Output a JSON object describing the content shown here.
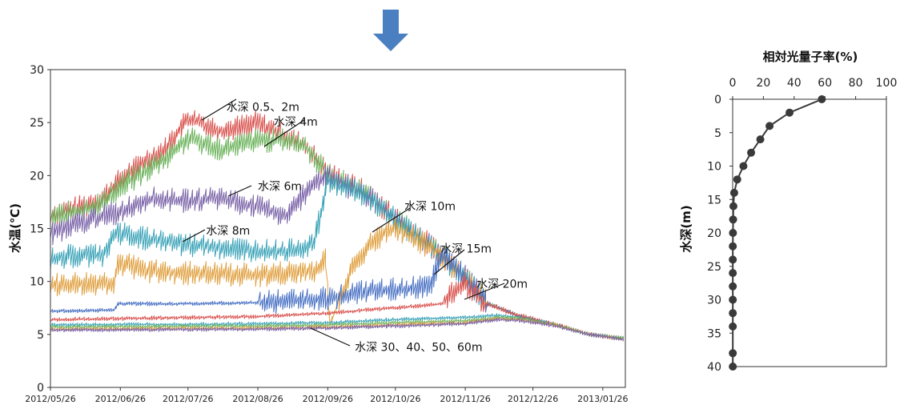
{
  "colors": {
    "arrow": "#4a7fc1",
    "frame": "#333333",
    "profile": "#3a3a3a"
  },
  "chart_data": [
    {
      "type": "line",
      "ylabel": "水温(℃)",
      "ylim": [
        0,
        30
      ],
      "yticks": [
        "0",
        "5",
        "10",
        "15",
        "20",
        "25",
        "30"
      ],
      "xlim": [
        "2012/05/26",
        "2013/02/05"
      ],
      "xticks": [
        "2012/05/26",
        "2012/06/26",
        "2012/07/26",
        "2012/08/26",
        "2012/09/26",
        "2012/10/26",
        "2012/11/26",
        "2012/12/26",
        "2013/01/26"
      ],
      "grid": false,
      "annotations": [
        {
          "text": "水深 0.5、2m",
          "x": "2012/08/12",
          "y": 26.5
        },
        {
          "text": "水深 4m",
          "x": "2012/09/02",
          "y": 25.1
        },
        {
          "text": "水深 6m",
          "x": "2012/08/26",
          "y": 19.0
        },
        {
          "text": "水深 8m",
          "x": "2012/08/03",
          "y": 14.8
        },
        {
          "text": "水深 10m",
          "x": "2012/10/30",
          "y": 17.1
        },
        {
          "text": "水深 15m",
          "x": "2012/11/15",
          "y": 13.1
        },
        {
          "text": "水深 20m",
          "x": "2012/12/01",
          "y": 9.8
        },
        {
          "text": "水深 30、40、50、60m",
          "x": "2012/10/08",
          "y": 3.8
        }
      ],
      "series": [
        {
          "color": "#d9534f",
          "points": [
            [
              "2012/05/26",
              16.3
            ],
            [
              "2012/06/08",
              17.0
            ],
            [
              "2012/06/18",
              17.8
            ],
            [
              "2012/06/26",
              19.6
            ],
            [
              "2012/07/08",
              21.5
            ],
            [
              "2012/07/16",
              22.5
            ],
            [
              "2012/07/26",
              25.4
            ],
            [
              "2012/08/10",
              24.2
            ],
            [
              "2012/08/26",
              25.0
            ],
            [
              "2012/09/08",
              23.6
            ],
            [
              "2012/09/16",
              22.8
            ],
            [
              "2012/09/26",
              20.2
            ],
            [
              "2012/10/12",
              18.5
            ],
            [
              "2012/10/26",
              16.0
            ],
            [
              "2012/11/10",
              13.5
            ],
            [
              "2012/11/26",
              10.5
            ],
            [
              "2012/12/06",
              8.0
            ],
            [
              "2012/12/20",
              6.8
            ],
            [
              "2013/01/05",
              6.0
            ],
            [
              "2013/01/20",
              5.0
            ],
            [
              "2013/02/05",
              4.6
            ]
          ]
        },
        {
          "color": "#6cb35c",
          "points": [
            [
              "2012/05/26",
              16.1
            ],
            [
              "2012/06/08",
              16.6
            ],
            [
              "2012/06/18",
              17.4
            ],
            [
              "2012/06/26",
              19.0
            ],
            [
              "2012/07/08",
              20.5
            ],
            [
              "2012/07/16",
              21.6
            ],
            [
              "2012/07/26",
              23.5
            ],
            [
              "2012/08/10",
              22.5
            ],
            [
              "2012/08/26",
              23.3
            ],
            [
              "2012/09/08",
              23.3
            ],
            [
              "2012/09/16",
              22.8
            ],
            [
              "2012/09/26",
              20.1
            ],
            [
              "2012/10/12",
              18.4
            ],
            [
              "2012/10/26",
              15.9
            ],
            [
              "2012/11/10",
              13.4
            ],
            [
              "2012/11/26",
              10.4
            ],
            [
              "2012/12/06",
              7.9
            ],
            [
              "2012/12/20",
              6.7
            ],
            [
              "2013/01/05",
              5.9
            ],
            [
              "2013/01/20",
              5.0
            ],
            [
              "2013/02/05",
              4.6
            ]
          ]
        },
        {
          "color": "#7a63a8",
          "points": [
            [
              "2012/05/26",
              14.5
            ],
            [
              "2012/06/08",
              15.5
            ],
            [
              "2012/06/18",
              16.2
            ],
            [
              "2012/06/26",
              16.6
            ],
            [
              "2012/07/08",
              17.8
            ],
            [
              "2012/07/26",
              17.6
            ],
            [
              "2012/08/10",
              17.9
            ],
            [
              "2012/08/26",
              17.0
            ],
            [
              "2012/09/08",
              16.2
            ],
            [
              "2012/09/20",
              19.5
            ],
            [
              "2012/09/26",
              19.8
            ],
            [
              "2012/10/12",
              18.3
            ],
            [
              "2012/10/26",
              15.9
            ],
            [
              "2012/11/10",
              13.4
            ],
            [
              "2012/11/26",
              10.4
            ],
            [
              "2012/12/06",
              7.9
            ],
            [
              "2012/12/20",
              6.7
            ],
            [
              "2013/01/05",
              5.9
            ],
            [
              "2013/01/20",
              5.0
            ],
            [
              "2013/02/05",
              4.6
            ]
          ]
        },
        {
          "color": "#3ba3b8",
          "points": [
            [
              "2012/05/26",
              12.2
            ],
            [
              "2012/06/08",
              12.5
            ],
            [
              "2012/06/18",
              12.5
            ],
            [
              "2012/06/24",
              14.6
            ],
            [
              "2012/07/08",
              14.0
            ],
            [
              "2012/07/26",
              13.5
            ],
            [
              "2012/08/10",
              13.2
            ],
            [
              "2012/08/26",
              12.9
            ],
            [
              "2012/09/08",
              12.8
            ],
            [
              "2012/09/20",
              13.6
            ],
            [
              "2012/09/26",
              19.4
            ],
            [
              "2012/10/12",
              18.2
            ],
            [
              "2012/10/26",
              15.8
            ],
            [
              "2012/11/10",
              13.4
            ],
            [
              "2012/11/26",
              10.4
            ],
            [
              "2012/12/06",
              7.9
            ],
            [
              "2012/12/20",
              6.7
            ],
            [
              "2013/01/05",
              5.9
            ],
            [
              "2013/01/20",
              5.0
            ],
            [
              "2013/02/05",
              4.6
            ]
          ]
        },
        {
          "color": "#e0a040",
          "points": [
            [
              "2012/05/26",
              9.6
            ],
            [
              "2012/06/08",
              9.8
            ],
            [
              "2012/06/23",
              9.9
            ],
            [
              "2012/06/25",
              11.8
            ],
            [
              "2012/07/08",
              11.0
            ],
            [
              "2012/07/26",
              10.8
            ],
            [
              "2012/08/26",
              10.6
            ],
            [
              "2012/09/20",
              11.0
            ],
            [
              "2012/09/25",
              12.0
            ],
            [
              "2012/09/27",
              6.0
            ],
            [
              "2012/10/08",
              12.0
            ],
            [
              "2012/10/20",
              14.5
            ],
            [
              "2012/10/26",
              15.0
            ],
            [
              "2012/11/10",
              13.3
            ],
            [
              "2012/11/26",
              10.4
            ],
            [
              "2012/12/06",
              7.9
            ],
            [
              "2012/12/20",
              6.7
            ],
            [
              "2013/01/05",
              5.9
            ],
            [
              "2013/01/20",
              5.0
            ],
            [
              "2013/02/05",
              4.6
            ]
          ]
        },
        {
          "color": "#4a72c4",
          "points": [
            [
              "2012/05/26",
              7.2
            ],
            [
              "2012/06/23",
              7.3
            ],
            [
              "2012/06/25",
              7.9
            ],
            [
              "2012/07/26",
              7.9
            ],
            [
              "2012/08/26",
              8.0
            ],
            [
              "2012/09/26",
              8.4
            ],
            [
              "2012/09/28",
              8.5
            ],
            [
              "2012/10/12",
              9.0
            ],
            [
              "2012/10/26",
              9.2
            ],
            [
              "2012/11/10",
              9.5
            ],
            [
              "2012/11/16",
              12.5
            ],
            [
              "2012/11/26",
              10.4
            ],
            [
              "2012/12/06",
              7.9
            ],
            [
              "2012/12/20",
              6.7
            ],
            [
              "2013/01/05",
              5.9
            ],
            [
              "2013/01/20",
              5.0
            ],
            [
              "2013/02/05",
              4.6
            ]
          ]
        },
        {
          "color": "#d9534f",
          "points": [
            [
              "2012/05/26",
              6.4
            ],
            [
              "2012/07/26",
              6.6
            ],
            [
              "2012/08/26",
              6.7
            ],
            [
              "2012/09/26",
              7.0
            ],
            [
              "2012/10/12",
              7.3
            ],
            [
              "2012/10/26",
              7.5
            ],
            [
              "2012/11/16",
              7.9
            ],
            [
              "2012/11/22",
              9.2
            ],
            [
              "2012/11/26",
              9.5
            ],
            [
              "2012/12/06",
              7.8
            ],
            [
              "2012/12/20",
              6.7
            ],
            [
              "2013/01/05",
              5.9
            ],
            [
              "2013/01/20",
              5.0
            ],
            [
              "2013/02/05",
              4.6
            ]
          ]
        },
        {
          "color": "#3ba3b8",
          "points": [
            [
              "2012/05/26",
              5.9
            ],
            [
              "2012/08/26",
              6.0
            ],
            [
              "2012/09/26",
              6.1
            ],
            [
              "2012/10/26",
              6.4
            ],
            [
              "2012/11/26",
              6.6
            ],
            [
              "2012/12/10",
              6.8
            ],
            [
              "2012/12/20",
              6.6
            ],
            [
              "2013/01/05",
              5.9
            ],
            [
              "2013/01/20",
              5.0
            ],
            [
              "2013/02/05",
              4.6
            ]
          ]
        },
        {
          "color": "#6cb35c",
          "points": [
            [
              "2012/05/26",
              5.7
            ],
            [
              "2012/08/26",
              5.8
            ],
            [
              "2012/09/26",
              5.9
            ],
            [
              "2012/10/26",
              6.1
            ],
            [
              "2012/11/26",
              6.3
            ],
            [
              "2012/12/10",
              6.6
            ],
            [
              "2012/12/20",
              6.5
            ],
            [
              "2013/01/05",
              5.9
            ],
            [
              "2013/01/20",
              5.0
            ],
            [
              "2013/02/05",
              4.6
            ]
          ]
        },
        {
          "color": "#e0a040",
          "points": [
            [
              "2012/05/26",
              5.5
            ],
            [
              "2012/08/26",
              5.6
            ],
            [
              "2012/09/26",
              5.7
            ],
            [
              "2012/10/26",
              5.9
            ],
            [
              "2012/11/26",
              6.1
            ],
            [
              "2012/12/10",
              6.5
            ],
            [
              "2012/12/20",
              6.4
            ],
            [
              "2013/01/05",
              5.9
            ],
            [
              "2013/01/20",
              5.0
            ],
            [
              "2013/02/05",
              4.5
            ]
          ]
        },
        {
          "color": "#7a63a8",
          "points": [
            [
              "2012/05/26",
              5.4
            ],
            [
              "2012/08/26",
              5.5
            ],
            [
              "2012/09/26",
              5.6
            ],
            [
              "2012/10/26",
              5.8
            ],
            [
              "2012/11/26",
              6.0
            ],
            [
              "2012/12/10",
              6.4
            ],
            [
              "2012/12/20",
              6.3
            ],
            [
              "2013/01/05",
              5.8
            ],
            [
              "2013/01/20",
              5.0
            ],
            [
              "2013/02/05",
              4.5
            ]
          ]
        }
      ]
    },
    {
      "type": "scatter",
      "title": "相対光量子率(%)",
      "ylabel": "水深(m)",
      "xlim": [
        0,
        100
      ],
      "ylim": [
        40,
        0
      ],
      "xticks": [
        "0",
        "20",
        "40",
        "60",
        "80",
        "100"
      ],
      "yticks": [
        "0",
        "5",
        "10",
        "15",
        "20",
        "25",
        "30",
        "35",
        "40"
      ],
      "x": [
        58,
        37,
        24,
        18,
        12,
        7,
        3,
        1,
        0.5,
        0.3,
        0.2,
        0.1,
        0.1,
        0.1,
        0.1,
        0.1,
        0.1,
        0.1,
        0.1,
        0.1
      ],
      "y": [
        0,
        2,
        4,
        6,
        8,
        10,
        12,
        14,
        16,
        18,
        20,
        22,
        24,
        26,
        28,
        30,
        32,
        34,
        38,
        40
      ]
    }
  ]
}
